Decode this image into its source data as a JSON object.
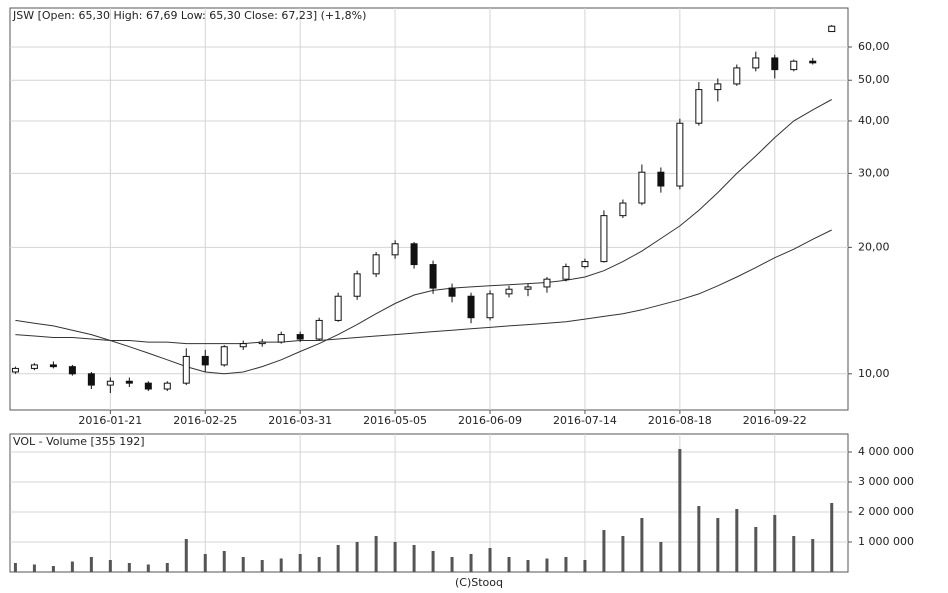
{
  "chart_data": [
    {
      "type": "candlestick",
      "title": "JSW [Open: 65,30  High: 67,69  Low: 65,30  Close: 67,23] (+1,8%)",
      "x": [
        "2015-12-17",
        "2015-12-24",
        "2015-12-31",
        "2016-01-07",
        "2016-01-14",
        "2016-01-21",
        "2016-01-28",
        "2016-02-04",
        "2016-02-11",
        "2016-02-18",
        "2016-02-25",
        "2016-03-03",
        "2016-03-10",
        "2016-03-17",
        "2016-03-24",
        "2016-03-31",
        "2016-04-07",
        "2016-04-14",
        "2016-04-21",
        "2016-04-28",
        "2016-05-05",
        "2016-05-12",
        "2016-05-19",
        "2016-05-26",
        "2016-06-02",
        "2016-06-09",
        "2016-06-16",
        "2016-06-23",
        "2016-06-30",
        "2016-07-07",
        "2016-07-14",
        "2016-07-21",
        "2016-07-28",
        "2016-08-04",
        "2016-08-11",
        "2016-08-18",
        "2016-08-25",
        "2016-09-01",
        "2016-09-08",
        "2016-09-15",
        "2016-09-22",
        "2016-09-29",
        "2016-10-06",
        "2016-10-13"
      ],
      "open": [
        10.1,
        10.3,
        10.5,
        10.4,
        10.0,
        9.4,
        9.6,
        9.5,
        9.2,
        9.5,
        11.0,
        10.5,
        11.6,
        11.8,
        11.9,
        12.4,
        12.1,
        13.4,
        15.3,
        17.3,
        19.2,
        20.4,
        18.2,
        16.0,
        15.3,
        13.6,
        15.5,
        15.9,
        16.1,
        16.8,
        18.0,
        18.5,
        23.8,
        25.5,
        30.2,
        28.0,
        39.5,
        47.5,
        49.0,
        53.5,
        56.5,
        53.0,
        55.5,
        65.3
      ],
      "high": [
        10.4,
        10.6,
        10.7,
        10.5,
        10.1,
        9.8,
        9.8,
        9.6,
        9.6,
        11.5,
        11.4,
        11.7,
        12.0,
        12.1,
        12.6,
        12.6,
        13.6,
        15.6,
        17.6,
        19.5,
        20.8,
        20.6,
        18.6,
        16.4,
        15.6,
        15.8,
        16.2,
        16.4,
        17.0,
        18.3,
        18.8,
        24.5,
        26.0,
        31.5,
        31.0,
        40.5,
        49.5,
        50.5,
        54.5,
        58.5,
        57.5,
        56.0,
        56.5,
        67.69
      ],
      "low": [
        10.0,
        10.2,
        10.3,
        9.9,
        9.2,
        9.0,
        9.3,
        9.1,
        9.1,
        9.4,
        10.1,
        10.4,
        11.4,
        11.6,
        11.8,
        11.9,
        12.0,
        13.3,
        15.0,
        17.0,
        18.8,
        17.8,
        15.5,
        14.8,
        13.2,
        13.4,
        15.2,
        15.3,
        15.6,
        16.6,
        17.8,
        18.4,
        23.5,
        25.2,
        27.0,
        27.5,
        39.0,
        44.5,
        48.5,
        52.5,
        50.5,
        52.5,
        54.5,
        65.3
      ],
      "close": [
        10.3,
        10.5,
        10.4,
        10.0,
        9.4,
        9.6,
        9.5,
        9.2,
        9.5,
        11.0,
        10.5,
        11.6,
        11.8,
        11.9,
        12.4,
        12.1,
        13.4,
        15.3,
        17.3,
        19.2,
        20.4,
        18.2,
        16.0,
        15.3,
        13.6,
        15.5,
        15.9,
        16.1,
        16.8,
        18.0,
        18.5,
        23.8,
        25.5,
        30.2,
        28.0,
        39.5,
        47.5,
        49.0,
        53.5,
        56.5,
        53.0,
        55.5,
        55.0,
        67.23
      ],
      "color": "#111111",
      "lines": [
        {
          "color": "#333333",
          "values": [
            13.4,
            13.2,
            13.0,
            12.7,
            12.4,
            12.0,
            11.6,
            11.2,
            10.8,
            10.4,
            10.1,
            10.0,
            10.1,
            10.4,
            10.8,
            11.3,
            11.8,
            12.4,
            13.1,
            13.9,
            14.7,
            15.4,
            15.8,
            16.0,
            16.1,
            16.2,
            16.3,
            16.4,
            16.5,
            16.7,
            17.0,
            17.6,
            18.5,
            19.6,
            21.0,
            22.5,
            24.5,
            27.0,
            30.0,
            33.0,
            36.5,
            40.0,
            42.5,
            45.0
          ]
        },
        {
          "color": "#333333",
          "values": [
            12.4,
            12.3,
            12.2,
            12.2,
            12.1,
            12.0,
            12.0,
            11.9,
            11.9,
            11.8,
            11.8,
            11.8,
            11.8,
            11.9,
            11.9,
            12.0,
            12.0,
            12.1,
            12.2,
            12.3,
            12.4,
            12.5,
            12.6,
            12.7,
            12.8,
            12.9,
            13.0,
            13.1,
            13.2,
            13.3,
            13.5,
            13.7,
            13.9,
            14.2,
            14.6,
            15.0,
            15.5,
            16.2,
            17.0,
            17.9,
            18.9,
            19.8,
            20.9,
            22.0
          ]
        }
      ],
      "log_scale": true,
      "grid": true,
      "xlim": [
        "2015-12-15",
        "2016-10-19"
      ],
      "xticks": [
        "2016-01-21",
        "2016-02-25",
        "2016-03-31",
        "2016-05-05",
        "2016-06-09",
        "2016-07-14",
        "2016-08-18",
        "2016-09-22"
      ],
      "ylim": [
        8.2,
        74.3
      ],
      "yticks": [
        {
          "value": 10,
          "label": "10,00"
        },
        {
          "value": 20,
          "label": "20,00"
        },
        {
          "value": 30,
          "label": "30,00"
        },
        {
          "value": 40,
          "label": "40,00"
        },
        {
          "value": 50,
          "label": "50,00"
        },
        {
          "value": 60,
          "label": "60,00"
        }
      ]
    },
    {
      "type": "bar",
      "title": "VOL - Volume [355 192]",
      "color": "#555555",
      "grid": true,
      "values": [
        300000,
        250000,
        200000,
        350000,
        500000,
        400000,
        300000,
        250000,
        300000,
        1100000,
        600000,
        700000,
        500000,
        400000,
        450000,
        600000,
        500000,
        900000,
        1000000,
        1200000,
        1000000,
        900000,
        700000,
        500000,
        600000,
        800000,
        500000,
        400000,
        450000,
        500000,
        400000,
        1400000,
        1200000,
        1800000,
        1000000,
        4100000,
        2200000,
        1800000,
        2100000,
        1500000,
        1900000,
        1200000,
        1100000,
        2300000
      ],
      "ylim": [
        0,
        4600000
      ],
      "yticks": [
        {
          "value": 1000000,
          "label": "1 000 000"
        },
        {
          "value": 2000000,
          "label": "2 000 000"
        },
        {
          "value": 3000000,
          "label": "3 000 000"
        },
        {
          "value": 4000000,
          "label": "4 000 000"
        }
      ]
    }
  ],
  "footer": "(C)Stooq"
}
